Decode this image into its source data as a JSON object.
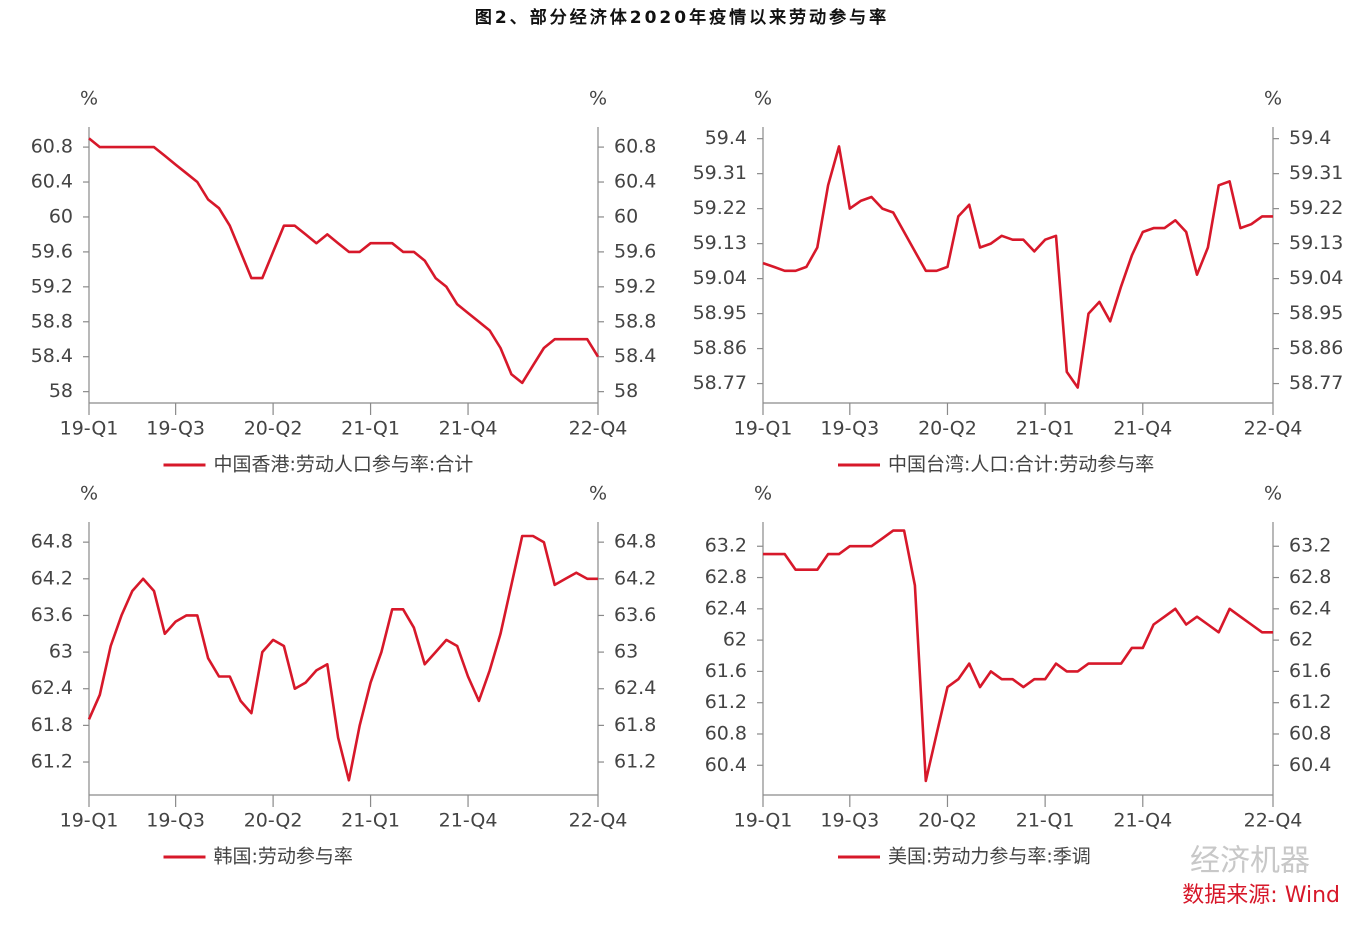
{
  "title": "图2、部分经济体2020年疫情以来劳动参与率",
  "source": "数据来源: Wind",
  "watermark": "经济机器",
  "chart_data": [
    {
      "type": "line",
      "ylabel": "%",
      "y2label": "%",
      "categories": [
        "19-Q1",
        null,
        null,
        null,
        null,
        null,
        null,
        null,
        "19-Q3",
        null,
        null,
        null,
        null,
        null,
        null,
        null,
        null,
        "20-Q2",
        null,
        null,
        null,
        null,
        null,
        null,
        null,
        null,
        "21-Q1",
        null,
        null,
        null,
        null,
        null,
        null,
        null,
        null,
        "21-Q4",
        null,
        null,
        null,
        null,
        null,
        null,
        null,
        null,
        null,
        null,
        null,
        "22-Q4"
      ],
      "series": [
        {
          "name": "中国香港:劳动人口参与率:合计",
          "color": "#d7182a",
          "values": [
            60.9,
            60.8,
            60.8,
            60.8,
            60.8,
            60.8,
            60.8,
            60.7,
            60.6,
            60.5,
            60.4,
            60.2,
            60.1,
            59.9,
            59.6,
            59.3,
            59.3,
            59.6,
            59.9,
            59.9,
            59.8,
            59.7,
            59.8,
            59.7,
            59.6,
            59.6,
            59.7,
            59.7,
            59.7,
            59.6,
            59.6,
            59.5,
            59.3,
            59.2,
            59.0,
            58.9,
            58.8,
            58.7,
            58.5,
            58.2,
            58.1,
            58.3,
            58.5,
            58.6,
            58.6,
            58.6,
            58.6,
            58.4
          ]
        }
      ],
      "ylim": [
        57.87,
        61.03
      ],
      "yticks": [
        58,
        58.4,
        58.8,
        59.2,
        59.6,
        60,
        60.4,
        60.8
      ],
      "y2lim": [
        57.87,
        61.03
      ],
      "y2ticks": [
        58,
        58.4,
        58.8,
        59.2,
        59.6,
        60,
        60.4,
        60.8
      ]
    },
    {
      "type": "line",
      "ylabel": "%",
      "y2label": "%",
      "categories": [
        "19-Q1",
        null,
        null,
        null,
        null,
        null,
        null,
        null,
        "19-Q3",
        null,
        null,
        null,
        null,
        null,
        null,
        null,
        null,
        "20-Q2",
        null,
        null,
        null,
        null,
        null,
        null,
        null,
        null,
        "21-Q1",
        null,
        null,
        null,
        null,
        null,
        null,
        null,
        null,
        "21-Q4",
        null,
        null,
        null,
        null,
        null,
        null,
        null,
        null,
        null,
        null,
        null,
        "22-Q4"
      ],
      "series": [
        {
          "name": "中国台湾:人口:合计:劳动参与率",
          "color": "#d7182a",
          "values": [
            59.08,
            59.07,
            59.06,
            59.06,
            59.07,
            59.12,
            59.28,
            59.38,
            59.22,
            59.24,
            59.25,
            59.22,
            59.21,
            59.16,
            59.11,
            59.06,
            59.06,
            59.07,
            59.2,
            59.23,
            59.12,
            59.13,
            59.15,
            59.14,
            59.14,
            59.11,
            59.14,
            59.15,
            58.8,
            58.76,
            58.95,
            58.98,
            58.93,
            59.02,
            59.1,
            59.16,
            59.17,
            59.17,
            59.19,
            59.16,
            59.05,
            59.12,
            59.28,
            59.29,
            59.17,
            59.18,
            59.2,
            59.2
          ]
        }
      ],
      "ylim": [
        58.72,
        59.43
      ],
      "yticks": [
        58.77,
        58.86,
        58.95,
        59.04,
        59.13,
        59.22,
        59.31,
        59.4
      ],
      "y2lim": [
        58.72,
        59.43
      ],
      "y2ticks": [
        58.77,
        58.86,
        58.95,
        59.04,
        59.13,
        59.22,
        59.31,
        59.4
      ]
    },
    {
      "type": "line",
      "ylabel": "%",
      "y2label": "%",
      "categories": [
        "19-Q1",
        null,
        null,
        null,
        null,
        null,
        null,
        null,
        "19-Q3",
        null,
        null,
        null,
        null,
        null,
        null,
        null,
        null,
        "20-Q2",
        null,
        null,
        null,
        null,
        null,
        null,
        null,
        null,
        "21-Q1",
        null,
        null,
        null,
        null,
        null,
        null,
        null,
        null,
        "21-Q4",
        null,
        null,
        null,
        null,
        null,
        null,
        null,
        null,
        null,
        null,
        null,
        "22-Q4"
      ],
      "series": [
        {
          "name": "韩国:劳动参与率",
          "color": "#d7182a",
          "values": [
            61.9,
            62.3,
            63.1,
            63.6,
            64.0,
            64.2,
            64.0,
            63.3,
            63.5,
            63.6,
            63.6,
            62.9,
            62.6,
            62.6,
            62.2,
            62.0,
            63.0,
            63.2,
            63.1,
            62.4,
            62.5,
            62.7,
            62.8,
            61.6,
            60.9,
            61.8,
            62.5,
            63.0,
            63.7,
            63.7,
            63.4,
            62.8,
            63.0,
            63.2,
            63.1,
            62.6,
            62.2,
            62.7,
            63.3,
            64.1,
            64.9,
            64.9,
            64.8,
            64.1,
            64.2,
            64.3,
            64.2,
            64.2
          ]
        }
      ],
      "ylim": [
        60.66,
        65.13
      ],
      "yticks": [
        61.2,
        61.8,
        62.4,
        63,
        63.6,
        64.2,
        64.8
      ],
      "y2lim": [
        60.66,
        65.13
      ],
      "y2ticks": [
        61.2,
        61.8,
        62.4,
        63,
        63.6,
        64.2,
        64.8
      ]
    },
    {
      "type": "line",
      "ylabel": "%",
      "y2label": "%",
      "categories": [
        "19-Q1",
        null,
        null,
        null,
        null,
        null,
        null,
        null,
        "19-Q3",
        null,
        null,
        null,
        null,
        null,
        null,
        null,
        null,
        "20-Q2",
        null,
        null,
        null,
        null,
        null,
        null,
        null,
        null,
        "21-Q1",
        null,
        null,
        null,
        null,
        null,
        null,
        null,
        null,
        "21-Q4",
        null,
        null,
        null,
        null,
        null,
        null,
        null,
        null,
        null,
        null,
        null,
        "22-Q4"
      ],
      "series": [
        {
          "name": "美国:劳动力参与率:季调",
          "color": "#d7182a",
          "values": [
            63.1,
            63.1,
            63.1,
            62.9,
            62.9,
            62.9,
            63.1,
            63.1,
            63.2,
            63.2,
            63.2,
            63.3,
            63.4,
            63.4,
            62.7,
            60.2,
            60.8,
            61.4,
            61.5,
            61.7,
            61.4,
            61.6,
            61.5,
            61.5,
            61.4,
            61.5,
            61.5,
            61.7,
            61.6,
            61.6,
            61.7,
            61.7,
            61.7,
            61.7,
            61.9,
            61.9,
            62.2,
            62.3,
            62.4,
            62.2,
            62.3,
            62.2,
            62.1,
            62.4,
            62.3,
            62.2,
            62.1,
            62.1
          ]
        }
      ],
      "ylim": [
        60.02,
        63.51
      ],
      "yticks": [
        60.4,
        60.8,
        61.2,
        61.6,
        62,
        62.4,
        62.8,
        63.2
      ],
      "y2lim": [
        60.02,
        63.51
      ],
      "y2ticks": [
        60.4,
        60.8,
        61.2,
        61.6,
        62,
        62.4,
        62.8,
        63.2
      ]
    }
  ]
}
